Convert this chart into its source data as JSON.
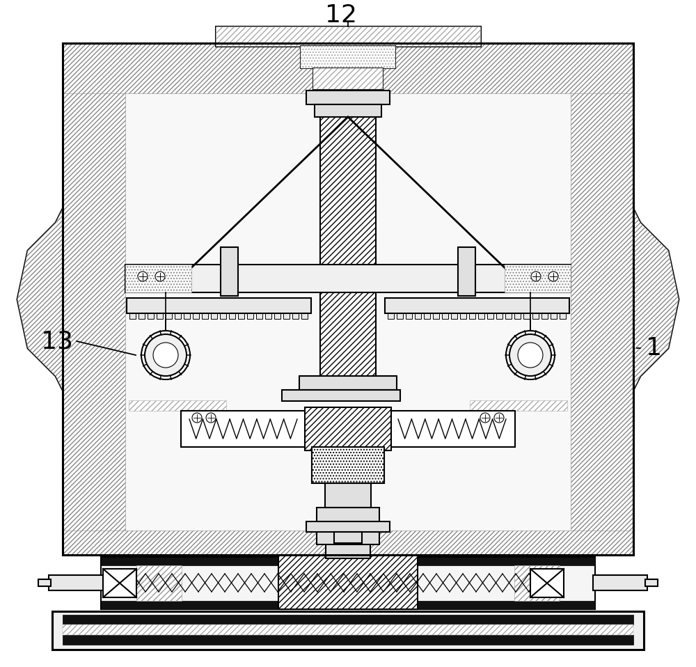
{
  "bg_color": "#ffffff",
  "label_12": "12",
  "label_13": "13",
  "label_1": "1",
  "label_fontsize": 26,
  "figsize": [
    10.0,
    9.58
  ],
  "dpi": 100
}
